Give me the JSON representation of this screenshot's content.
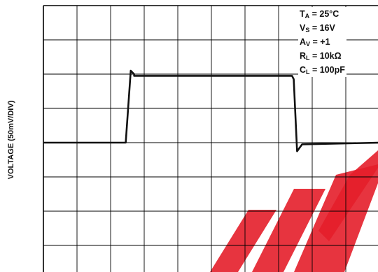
{
  "chart_data": {
    "type": "line",
    "title": "",
    "xlabel": "",
    "ylabel": "VOLTAGE (50mV/DIV)",
    "grid": true,
    "divisions": {
      "x": 10,
      "y": 8
    },
    "xlim": [
      0,
      10
    ],
    "ylim": [
      -4,
      4
    ],
    "series": [
      {
        "values": [
          {
            "x": 0,
            "y": -0.0
          },
          {
            "x": 2.45,
            "y": -0.0
          },
          {
            "x": 2.6,
            "y": 2.1
          },
          {
            "x": 2.7,
            "y": 2.0
          },
          {
            "x": 2.7,
            "y": 1.95
          },
          {
            "x": 7.4,
            "y": 1.95
          },
          {
            "x": 7.45,
            "y": 1.85
          },
          {
            "x": 7.55,
            "y": -0.25
          },
          {
            "x": 7.7,
            "y": -0.05
          },
          {
            "x": 10,
            "y": -0.0
          }
        ]
      }
    ],
    "conditions": [
      {
        "sym": "T",
        "sub": "A",
        "val": " = 25°C"
      },
      {
        "sym": "V",
        "sub": "S",
        "val": " = 16V"
      },
      {
        "sym": "A",
        "sub": "V",
        "val": " = +1"
      },
      {
        "sym": "R",
        "sub": "L",
        "val": " = 10kΩ"
      },
      {
        "sym": "C",
        "sub": "L",
        "val": " = 100pF"
      }
    ]
  },
  "colors": {
    "grid": "#000000",
    "trace": "#111111",
    "watermark": "#e41e2a"
  }
}
